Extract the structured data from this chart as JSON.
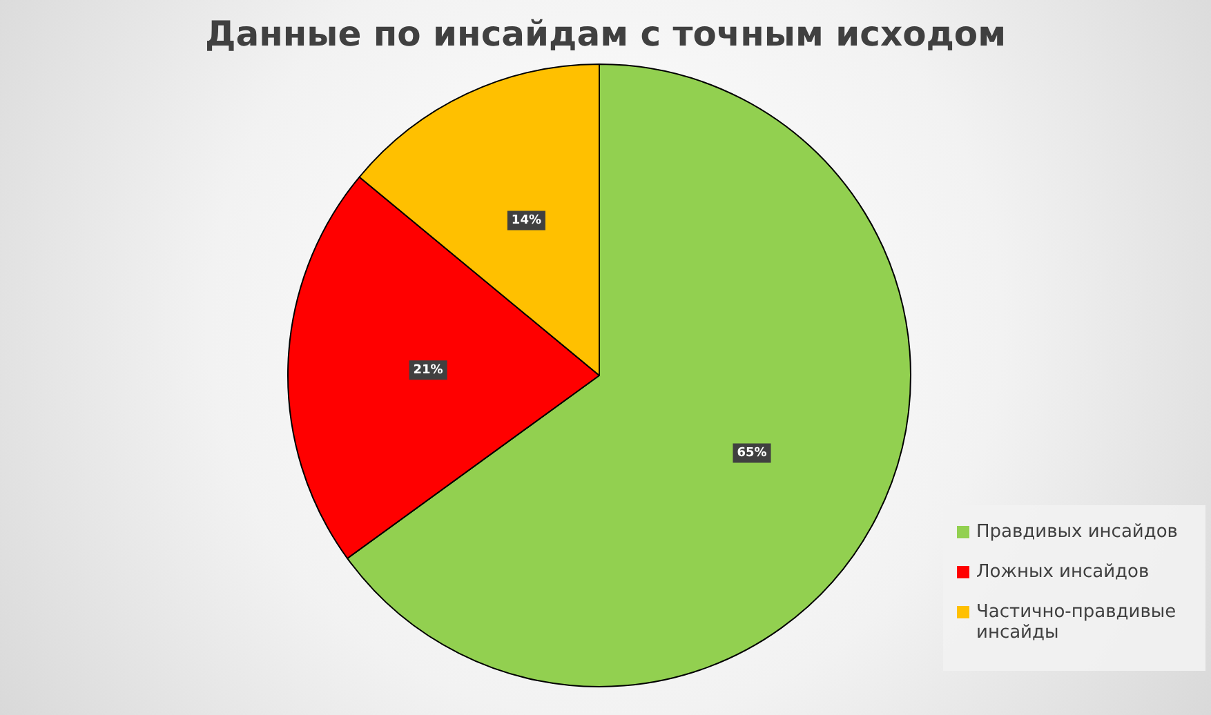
{
  "chart_data": {
    "type": "pie",
    "title": "Данные по инсайдам с точным исходом",
    "categories": [
      "Правдивых инсайдов",
      "Ложных инсайдов",
      "Частично-правдивые инсайды"
    ],
    "values": [
      65,
      21,
      14
    ],
    "colors": [
      "#92d050",
      "#ff0000",
      "#ffc000"
    ],
    "value_labels": [
      "65%",
      "21%",
      "14%"
    ],
    "legend": "bottom right"
  }
}
